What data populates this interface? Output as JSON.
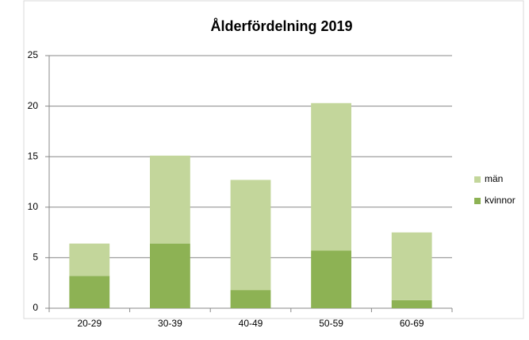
{
  "chart_data": {
    "type": "stacked_bar",
    "title": "Ålderfördelning 2019",
    "categories": [
      "20-29",
      "30-39",
      "40-49",
      "50-59",
      "60-69"
    ],
    "series": [
      {
        "name": "kvinnor",
        "color": "#8db254",
        "values": [
          3.2,
          6.4,
          1.8,
          5.7,
          0.8
        ]
      },
      {
        "name": "män",
        "color": "#c3d69b",
        "values": [
          3.2,
          8.7,
          10.9,
          14.6,
          6.7
        ]
      }
    ],
    "ylim": [
      0,
      25
    ],
    "yticks": [
      0,
      5,
      10,
      15,
      20,
      25
    ],
    "grid": true,
    "legend": "right"
  }
}
